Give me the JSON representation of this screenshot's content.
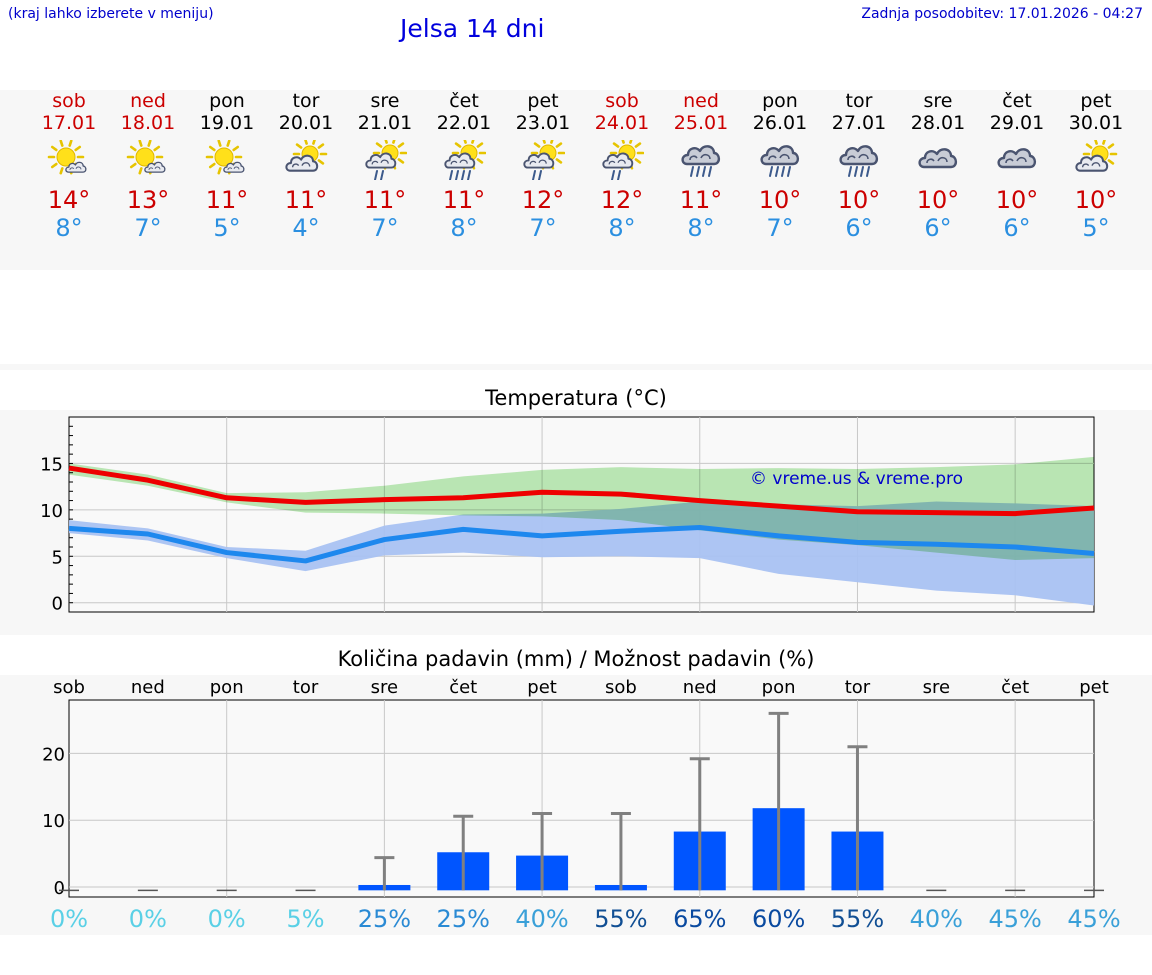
{
  "header": {
    "hint": "(kraj lahko izberete v meniju)",
    "title": "Jelsa 14 dni",
    "updated": "Zadnja posodobitev: 17.01.2026 - 04:27"
  },
  "days": [
    {
      "name": "sob",
      "date": "17.01",
      "weekend": true,
      "icon": "sun-cloud-icon",
      "tmax": "14°",
      "tmin": "8°"
    },
    {
      "name": "ned",
      "date": "18.01",
      "weekend": true,
      "icon": "sun-cloud-icon",
      "tmax": "13°",
      "tmin": "7°"
    },
    {
      "name": "pon",
      "date": "19.01",
      "weekend": false,
      "icon": "sun-cloud-icon",
      "tmax": "11°",
      "tmin": "5°"
    },
    {
      "name": "tor",
      "date": "20.01",
      "weekend": false,
      "icon": "cloud-sun-icon",
      "tmax": "11°",
      "tmin": "4°"
    },
    {
      "name": "sre",
      "date": "21.01",
      "weekend": false,
      "icon": "sun-cloud-rain-icon",
      "tmax": "11°",
      "tmin": "7°"
    },
    {
      "name": "čet",
      "date": "22.01",
      "weekend": false,
      "icon": "sun-cloud-heavy-rain-icon",
      "tmax": "11°",
      "tmin": "8°"
    },
    {
      "name": "pet",
      "date": "23.01",
      "weekend": false,
      "icon": "sun-cloud-rain-icon",
      "tmax": "12°",
      "tmin": "7°"
    },
    {
      "name": "sob",
      "date": "24.01",
      "weekend": true,
      "icon": "sun-cloud-rain-icon",
      "tmax": "12°",
      "tmin": "8°"
    },
    {
      "name": "ned",
      "date": "25.01",
      "weekend": true,
      "icon": "cloud-rain-icon",
      "tmax": "11°",
      "tmin": "8°"
    },
    {
      "name": "pon",
      "date": "26.01",
      "weekend": false,
      "icon": "cloud-rain-icon",
      "tmax": "10°",
      "tmin": "7°"
    },
    {
      "name": "tor",
      "date": "27.01",
      "weekend": false,
      "icon": "cloud-rain-icon",
      "tmax": "10°",
      "tmin": "6°"
    },
    {
      "name": "sre",
      "date": "28.01",
      "weekend": false,
      "icon": "cloud-icon",
      "tmax": "10°",
      "tmin": "6°"
    },
    {
      "name": "čet",
      "date": "29.01",
      "weekend": false,
      "icon": "cloud-icon",
      "tmax": "10°",
      "tmin": "6°"
    },
    {
      "name": "pet",
      "date": "30.01",
      "weekend": false,
      "icon": "cloud-sun-icon",
      "tmax": "10°",
      "tmin": "5°"
    }
  ],
  "colors": {
    "weekend": "#cc0000",
    "tmax_line": "#ee0000",
    "tmin_line": "#1e88ee",
    "max_band": "#a8e4a0",
    "min_band": "#a9c2f2",
    "overlap_band": "#7cc4a8",
    "precip_bar": "#0055ff",
    "error_bar": "#808080",
    "watermark": "#0000cc"
  },
  "chart_data": [
    {
      "type": "line",
      "title": "Temperatura (°C)",
      "watermark": "© vreme.us & vreme.pro",
      "x": [
        "17.01",
        "18.01",
        "19.01",
        "20.01",
        "21.01",
        "22.01",
        "23.01",
        "24.01",
        "25.01",
        "26.01",
        "27.01",
        "28.01",
        "29.01",
        "30.01"
      ],
      "ylim": [
        -1,
        20
      ],
      "yticks": [
        0,
        5,
        10,
        15
      ],
      "series": [
        {
          "name": "tmax",
          "values": [
            14.5,
            13.2,
            11.3,
            10.8,
            11.1,
            11.3,
            11.9,
            11.7,
            11.0,
            10.4,
            9.8,
            9.7,
            9.6,
            10.2
          ]
        },
        {
          "name": "tmin",
          "values": [
            8.0,
            7.4,
            5.4,
            4.5,
            6.8,
            7.9,
            7.2,
            7.7,
            8.1,
            7.2,
            6.5,
            6.3,
            6.0,
            5.3
          ]
        }
      ],
      "bands": [
        {
          "name": "tmax_range",
          "upper": [
            15.0,
            13.8,
            11.8,
            11.9,
            12.6,
            13.6,
            14.3,
            14.6,
            14.4,
            14.5,
            14.4,
            14.6,
            14.9,
            15.7
          ],
          "lower": [
            13.8,
            12.6,
            10.8,
            9.7,
            9.6,
            9.4,
            9.3,
            8.9,
            7.8,
            6.8,
            6.2,
            5.4,
            4.6,
            4.8
          ]
        },
        {
          "name": "tmin_range",
          "upper": [
            8.9,
            8.0,
            6.0,
            5.6,
            8.3,
            9.5,
            9.6,
            10.1,
            10.9,
            10.6,
            10.4,
            10.9,
            10.7,
            10.4
          ],
          "lower": [
            7.5,
            6.7,
            4.8,
            3.4,
            5.1,
            5.4,
            4.9,
            5.0,
            4.8,
            3.1,
            2.2,
            1.3,
            0.8,
            -0.3
          ]
        }
      ],
      "grid": true
    },
    {
      "type": "bar",
      "title": "Količina padavin (mm) / Možnost padavin (%)",
      "categories": [
        "sob",
        "ned",
        "pon",
        "tor",
        "sre",
        "čet",
        "pet",
        "sob",
        "ned",
        "pon",
        "tor",
        "sre",
        "čet",
        "pet"
      ],
      "values": [
        0,
        0,
        0,
        0,
        0.3,
        5.2,
        4.7,
        0.3,
        8.3,
        11.8,
        8.3,
        0,
        0,
        0
      ],
      "error_high": [
        0,
        0,
        0,
        0,
        4.4,
        10.6,
        11.0,
        11.0,
        19.2,
        26.0,
        21.0,
        0,
        0,
        0
      ],
      "chance_labels": [
        "0%",
        "0%",
        "0%",
        "5%",
        "25%",
        "25%",
        "40%",
        "55%",
        "65%",
        "60%",
        "55%",
        "40%",
        "45%",
        "45%"
      ],
      "chance": [
        0,
        0,
        0,
        5,
        25,
        25,
        40,
        55,
        65,
        60,
        55,
        40,
        45,
        45
      ],
      "ylim": [
        -1.5,
        28
      ],
      "yticks": [
        0,
        10,
        20
      ],
      "grid": true
    }
  ]
}
